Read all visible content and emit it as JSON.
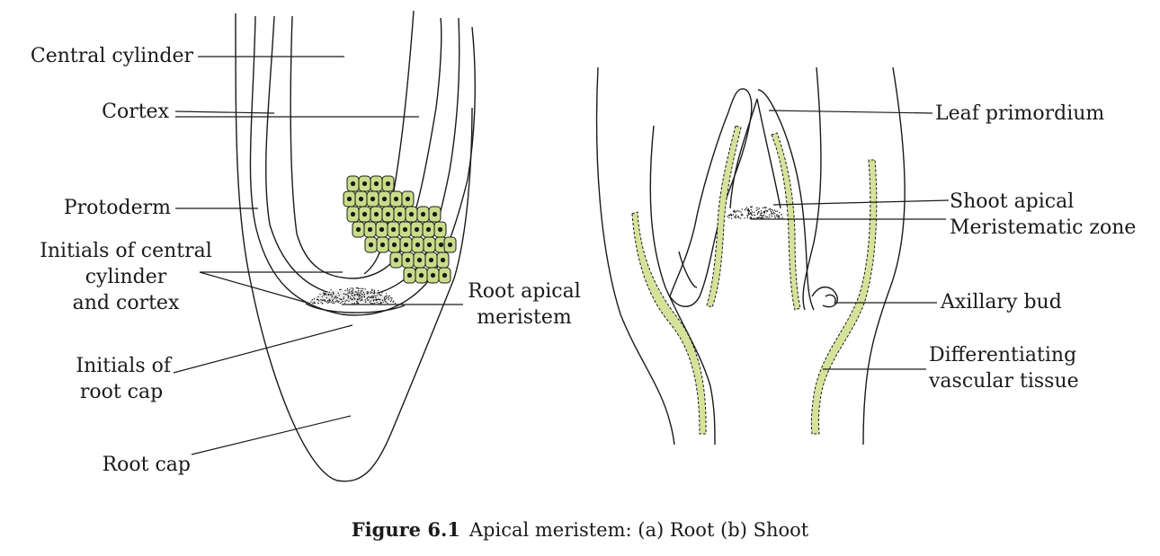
{
  "root_diagram": {
    "labels": {
      "central_cylinder": "Central cylinder",
      "cortex": "Cortex",
      "protoderm": "Protoderm",
      "initials_central_1": "Initials of central",
      "initials_central_2": "cylinder",
      "initials_central_3": "and cortex",
      "initials_cap_1": "Initials of",
      "initials_cap_2": "root cap",
      "root_cap": "Root cap",
      "root_apical_1": "Root apical",
      "root_apical_2": "meristem"
    }
  },
  "shoot_diagram": {
    "labels": {
      "leaf_primordium": "Leaf primordium",
      "shoot_apical_1": "Shoot apical",
      "shoot_apical_2": "Meristematic zone",
      "axillary_bud": "Axillary bud",
      "diff_vascular_1": "Differentiating",
      "diff_vascular_2": "vascular tissue"
    }
  },
  "caption": {
    "figure_number": "Figure 6.1",
    "text": "Apical meristem: (a) Root  (b) Shoot"
  },
  "colors": {
    "vascular_fill": "#d5e39a",
    "cell_fill": "#c9dc8a",
    "line": "#1a1a1a"
  }
}
